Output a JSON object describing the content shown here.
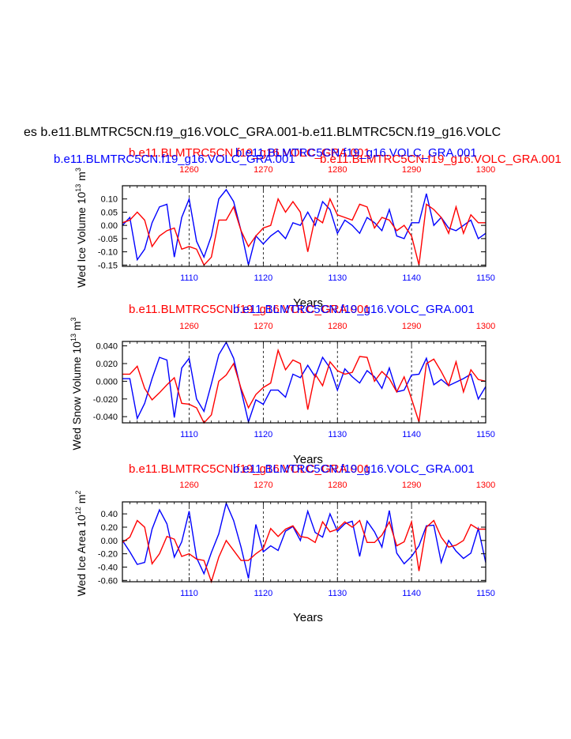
{
  "page_title": "es b.e11.BLMTRC5CN.f19_g16.VOLC_GRA.001-b.e11.BLMTRC5CN.f19_g16.VOLC",
  "legend_blue": "b.e11.BLMTRC5CN.f19_g16.VOLC_GRA.001",
  "legend_red": "b.e11.BLMTRC5CN.f19_g16.VOLC_GRA.001",
  "colors": {
    "series_a": "#0000ff",
    "series_b": "#ff0000",
    "axis": "#000000",
    "grid": "#000000"
  },
  "chart_data": [
    {
      "type": "line",
      "title_top": "b.e11.BLMTRC5CN.f19_g16.VOLC_GRA.001",
      "title_top2": "b.e11.BLMTRC5CN.f19_g16.VOLC_GRA.001",
      "ylabel": "Wed Ice Volume 10",
      "yunit_exp": "13",
      "yunit_tail": " m",
      "yunit_sup": "3",
      "xlabel": "Years",
      "ylim": [
        -0.155,
        0.15
      ],
      "yticks": [
        0.1,
        0.05,
        0.0,
        -0.05,
        -0.1,
        -0.15
      ],
      "ytick_labels": [
        "0.10",
        "0.05",
        "0.00",
        "-0.05",
        "-0.10",
        "-0.15"
      ],
      "xlim": [
        1101,
        1150
      ],
      "xticks": [
        1110,
        1120,
        1130,
        1140,
        1150
      ],
      "xtick_labels": [
        "1110",
        "1120",
        "1130",
        "1140",
        "1150"
      ],
      "top_xticks": [
        1260,
        1270,
        1280,
        1290,
        1300
      ],
      "top_xtick_labels": [
        "1260",
        "1270",
        "1280",
        "1290",
        "1300"
      ],
      "grid_x": [
        1110,
        1120,
        1130,
        1140
      ],
      "series": [
        {
          "name": "b.e11.BLMTRC5CN.f19_g16.VOLC_GRA.001",
          "color": "#0000ff",
          "x_start": 1101,
          "values": [
            0.0,
            0.03,
            -0.13,
            -0.09,
            0.01,
            0.07,
            0.08,
            -0.12,
            0.03,
            0.1,
            -0.06,
            -0.12,
            -0.04,
            0.1,
            0.135,
            0.09,
            -0.02,
            -0.15,
            -0.04,
            -0.07,
            -0.04,
            -0.02,
            -0.05,
            0.01,
            0.0,
            0.05,
            0.0,
            0.09,
            0.06,
            -0.03,
            0.02,
            0.0,
            -0.03,
            0.03,
            0.01,
            -0.02,
            0.06,
            -0.04,
            -0.05,
            0.01,
            0.01,
            0.12,
            0.0,
            0.03,
            -0.01,
            -0.02,
            0.0,
            0.02,
            -0.05,
            -0.03
          ]
        },
        {
          "name": "b.e11.BLMTRC5CN.f19_g16.VOLC_GRA.001",
          "color": "#ff0000",
          "x_start": 1101,
          "values": [
            0.01,
            0.02,
            0.05,
            0.02,
            -0.08,
            -0.04,
            -0.02,
            -0.01,
            -0.09,
            -0.08,
            -0.09,
            -0.15,
            -0.12,
            0.02,
            0.02,
            0.07,
            -0.02,
            -0.08,
            -0.04,
            -0.01,
            0.0,
            0.1,
            0.05,
            0.09,
            0.05,
            -0.1,
            0.03,
            0.01,
            0.1,
            0.04,
            0.03,
            0.02,
            0.08,
            0.07,
            -0.01,
            0.03,
            0.02,
            -0.02,
            0.0,
            -0.04,
            -0.15,
            0.08,
            0.06,
            0.03,
            -0.03,
            0.07,
            -0.03,
            0.04,
            0.01,
            0.01
          ]
        }
      ]
    },
    {
      "type": "line",
      "title_top": "b.e11.BLMTRC5CN.f19_g16.VOLC_GRA.001",
      "title_top2": "b.e11.BLMTRC5CN.f19_g16.VOLC_GRA.001",
      "ylabel": "Wed Snow Volume 10",
      "yunit_exp": "13",
      "yunit_tail": " m",
      "yunit_sup": "3",
      "xlabel": "Years",
      "ylim": [
        -0.047,
        0.045
      ],
      "yticks": [
        0.04,
        0.02,
        0.0,
        -0.02,
        -0.04
      ],
      "ytick_labels": [
        "0.040",
        "0.020",
        "0.000",
        "-0.020",
        "-0.040"
      ],
      "xlim": [
        1101,
        1150
      ],
      "xticks": [
        1110,
        1120,
        1130,
        1140,
        1150
      ],
      "xtick_labels": [
        "1110",
        "1120",
        "1130",
        "1140",
        "1150"
      ],
      "top_xticks": [
        1260,
        1270,
        1280,
        1290,
        1300
      ],
      "top_xtick_labels": [
        "1260",
        "1270",
        "1280",
        "1290",
        "1300"
      ],
      "grid_x": [
        1110,
        1120,
        1130,
        1140
      ],
      "series": [
        {
          "name": "b.e11.BLMTRC5CN.f19_g16.VOLC_GRA.001",
          "color": "#0000ff",
          "x_start": 1101,
          "values": [
            0.003,
            0.003,
            -0.042,
            -0.025,
            0.003,
            0.027,
            0.024,
            -0.041,
            0.015,
            0.026,
            -0.02,
            -0.034,
            -0.003,
            0.03,
            0.044,
            0.026,
            -0.01,
            -0.046,
            -0.021,
            -0.026,
            -0.01,
            -0.01,
            -0.018,
            0.008,
            0.004,
            0.018,
            0.005,
            0.027,
            0.015,
            -0.01,
            0.014,
            0.005,
            -0.002,
            0.012,
            0.005,
            -0.008,
            0.015,
            -0.012,
            -0.01,
            0.007,
            0.008,
            0.026,
            -0.004,
            0.002,
            -0.005,
            -0.001,
            0.003,
            0.008,
            -0.02,
            -0.006
          ]
        },
        {
          "name": "b.e11.BLMTRC5CN.f19_g16.VOLC_GRA.001",
          "color": "#ff0000",
          "x_start": 1101,
          "values": [
            0.008,
            0.008,
            0.017,
            -0.008,
            -0.021,
            -0.013,
            -0.004,
            0.004,
            -0.025,
            -0.026,
            -0.03,
            -0.047,
            -0.038,
            0.0,
            0.007,
            0.02,
            -0.008,
            -0.03,
            -0.015,
            -0.007,
            -0.002,
            0.035,
            0.013,
            0.024,
            0.02,
            -0.032,
            0.008,
            -0.005,
            0.022,
            0.012,
            0.008,
            0.01,
            0.028,
            0.027,
            0.0,
            0.011,
            0.003,
            -0.012,
            0.005,
            -0.02,
            -0.046,
            0.02,
            0.025,
            0.011,
            -0.005,
            0.022,
            -0.012,
            0.013,
            0.002,
            0.0
          ]
        }
      ]
    },
    {
      "type": "line",
      "title_top": "b.e11.BLMTRC5CN.f19_g16.VOLC_GRA.001",
      "title_top2": "b.e11.BLMTRC5CN.f19_g16.VOLC_GRA.001",
      "ylabel": "Wed Ice Area 10",
      "yunit_exp": "12",
      "yunit_tail": " m",
      "yunit_sup": "2",
      "xlabel": "Years",
      "ylim": [
        -0.62,
        0.58
      ],
      "yticks": [
        0.4,
        0.2,
        0.0,
        -0.2,
        -0.4,
        -0.6
      ],
      "ytick_labels": [
        "0.40",
        "0.20",
        "0.00",
        "-0.20",
        "-0.40",
        "-0.60"
      ],
      "xlim": [
        1101,
        1150
      ],
      "xticks": [
        1110,
        1120,
        1130,
        1140,
        1150
      ],
      "xtick_labels": [
        "1110",
        "1120",
        "1130",
        "1140",
        "1150"
      ],
      "top_xticks": [
        1260,
        1270,
        1280,
        1290,
        1300
      ],
      "top_xtick_labels": [
        "1260",
        "1270",
        "1280",
        "1290",
        "1300"
      ],
      "grid_x": [
        1110,
        1120,
        1130,
        1140
      ],
      "series": [
        {
          "name": "b.e11.BLMTRC5CN.f19_g16.VOLC_GRA.001",
          "color": "#0000ff",
          "x_start": 1101,
          "values": [
            0.0,
            -0.17,
            -0.36,
            -0.33,
            0.17,
            0.46,
            0.25,
            -0.25,
            -0.02,
            0.44,
            -0.26,
            -0.5,
            -0.18,
            0.1,
            0.56,
            0.3,
            -0.1,
            -0.57,
            0.24,
            -0.17,
            -0.08,
            -0.15,
            0.14,
            0.21,
            0.0,
            0.44,
            0.12,
            0.05,
            0.4,
            0.14,
            0.25,
            0.29,
            -0.24,
            0.29,
            0.13,
            -0.1,
            0.45,
            -0.19,
            -0.35,
            -0.24,
            -0.08,
            0.22,
            0.23,
            -0.33,
            0.0,
            -0.16,
            -0.27,
            -0.19,
            0.18,
            -0.33
          ]
        },
        {
          "name": "b.e11.BLMTRC5CN.f19_g16.VOLC_GRA.001",
          "color": "#ff0000",
          "x_start": 1101,
          "values": [
            -0.03,
            0.05,
            0.3,
            0.2,
            -0.35,
            -0.2,
            0.06,
            0.02,
            -0.24,
            -0.2,
            -0.28,
            -0.3,
            -0.62,
            -0.25,
            0.0,
            -0.15,
            -0.3,
            -0.3,
            -0.2,
            -0.12,
            0.18,
            0.06,
            0.17,
            0.22,
            0.06,
            0.04,
            -0.03,
            0.28,
            0.13,
            0.17,
            0.28,
            0.2,
            0.3,
            -0.03,
            -0.03,
            0.08,
            0.28,
            -0.08,
            -0.02,
            0.28,
            -0.46,
            0.2,
            0.3,
            0.05,
            -0.1,
            -0.07,
            0.0,
            0.24,
            0.17,
            0.17
          ]
        }
      ]
    }
  ]
}
